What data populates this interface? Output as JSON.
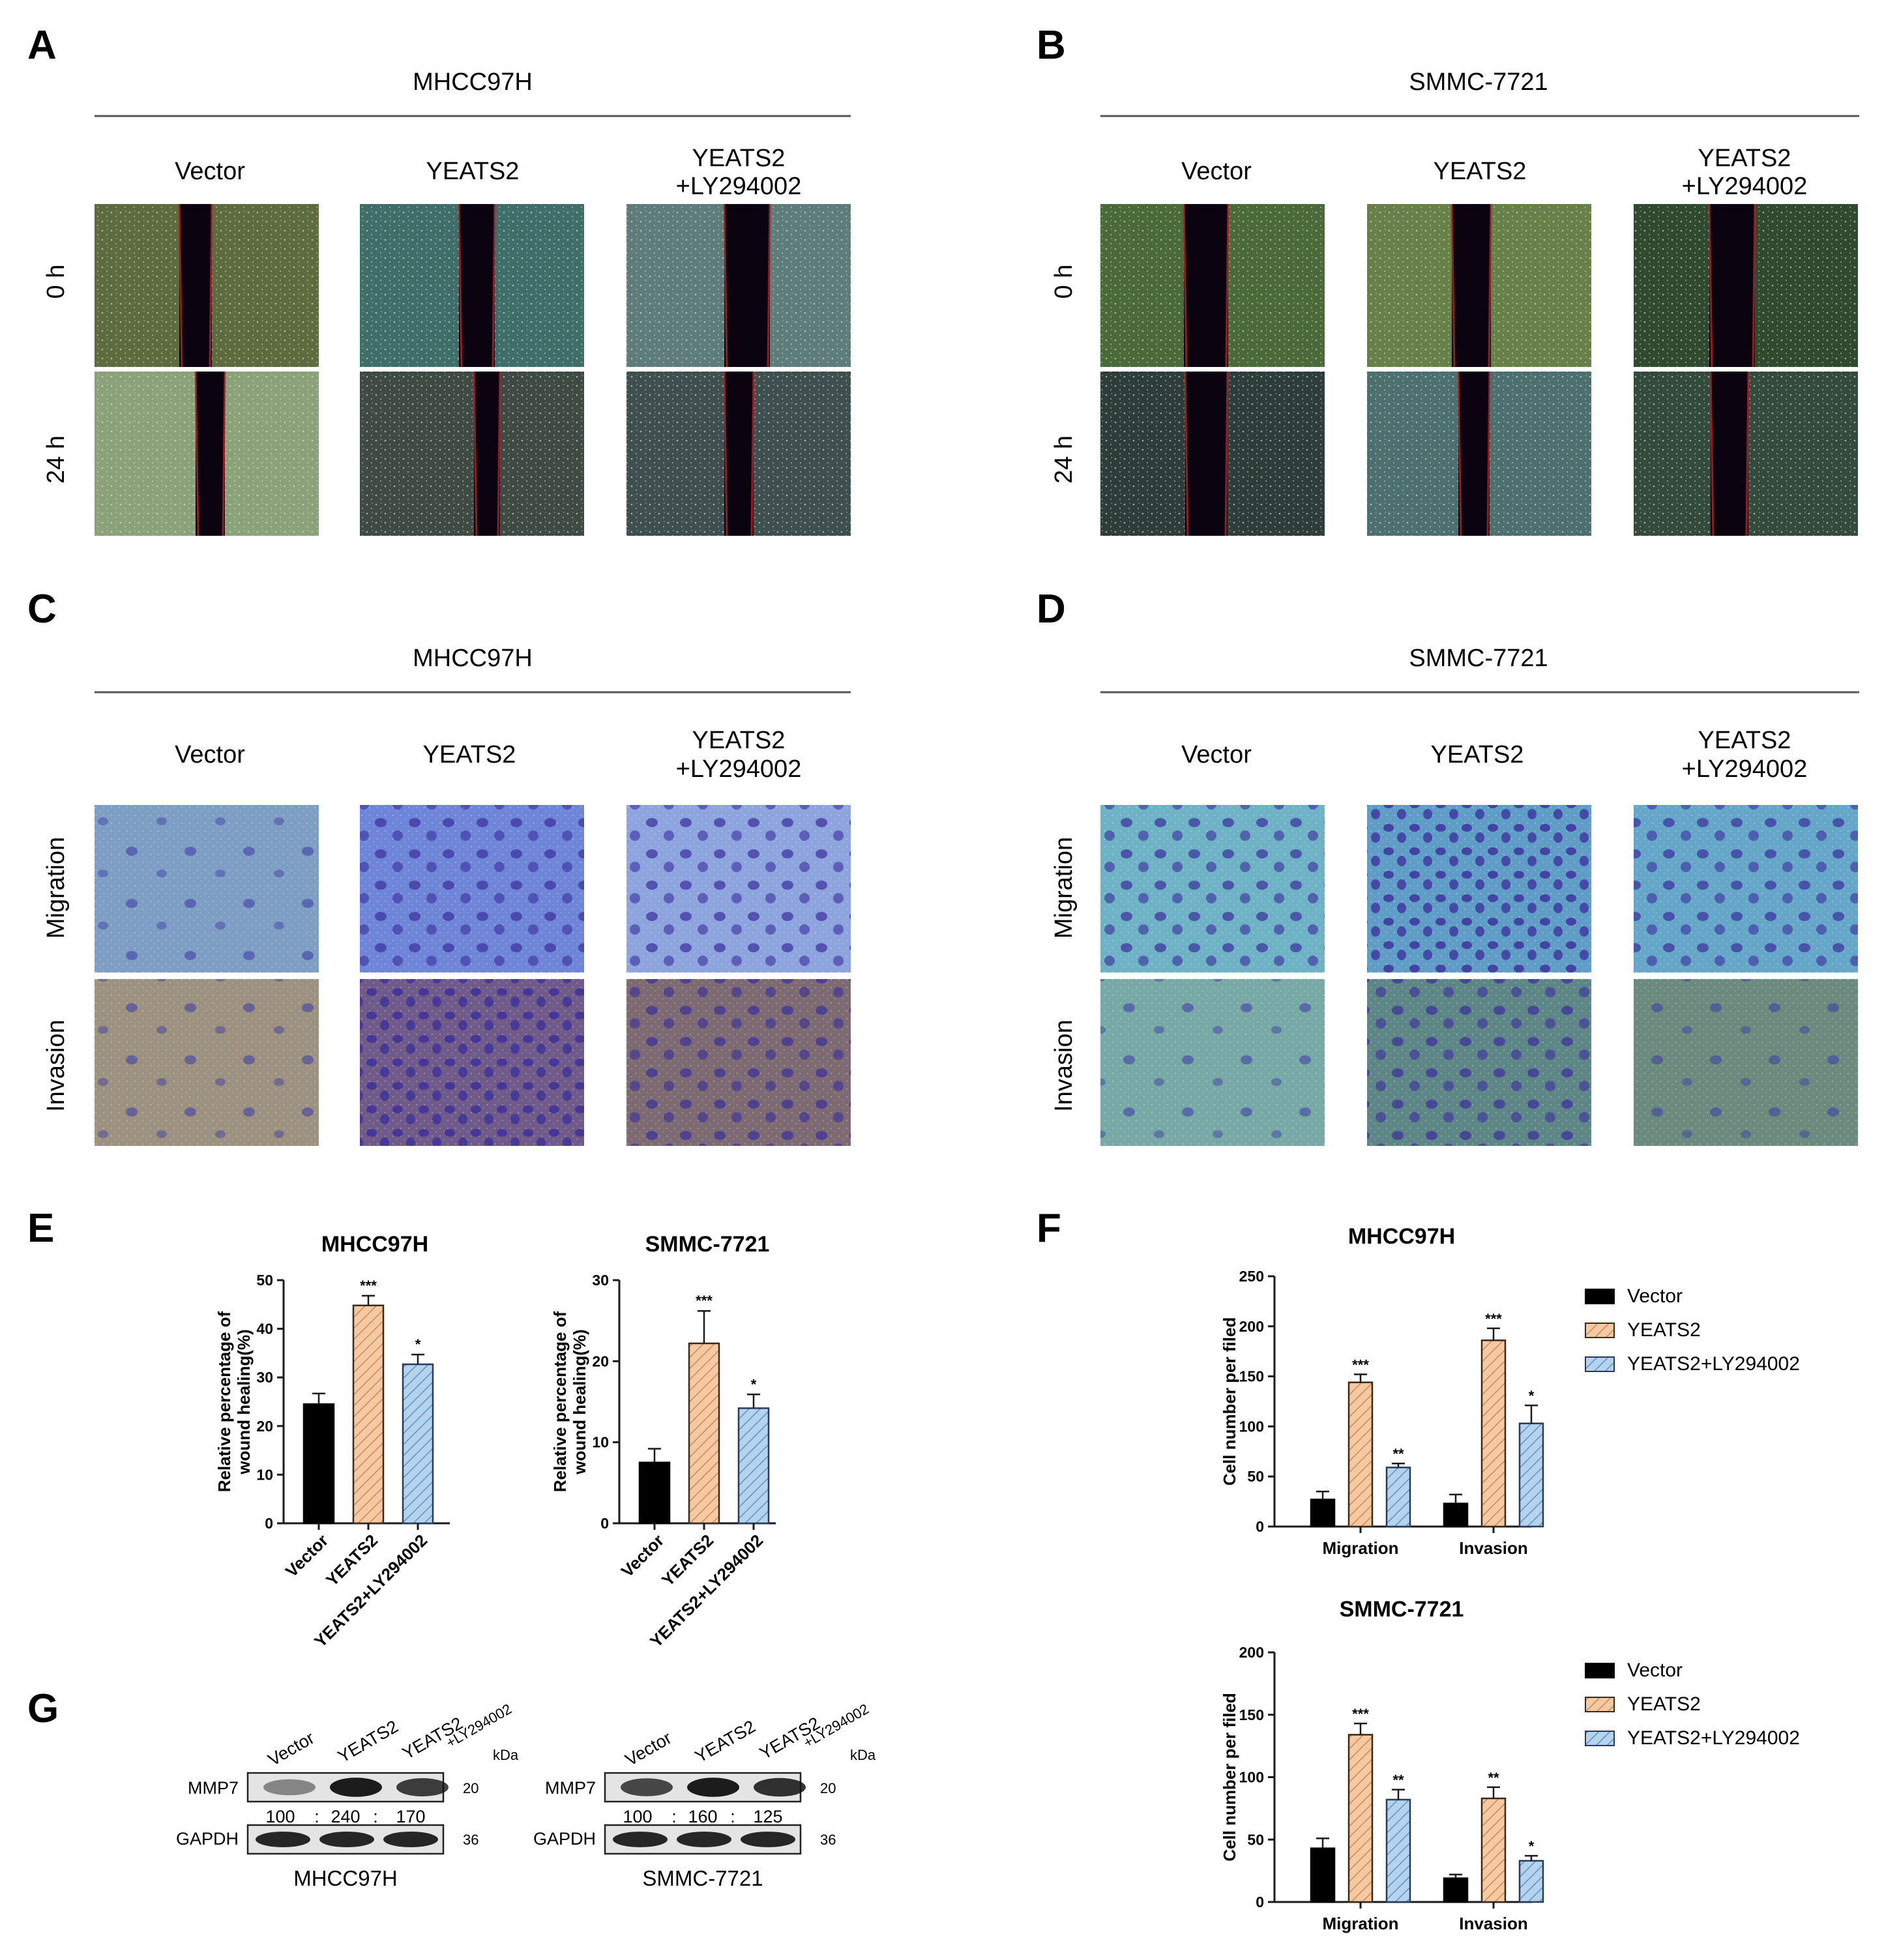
{
  "panels": {
    "A": {
      "letter": "A",
      "cell_line": "MHCC97H"
    },
    "B": {
      "letter": "B",
      "cell_line": "SMMC-7721"
    },
    "C": {
      "letter": "C",
      "cell_line": "MHCC97H"
    },
    "D": {
      "letter": "D",
      "cell_line": "SMMC-7721"
    },
    "E": {
      "letter": "E"
    },
    "F": {
      "letter": "F"
    },
    "G": {
      "letter": "G"
    }
  },
  "groups": {
    "vector": "Vector",
    "yeats2": "YEATS2",
    "combo_line1": "YEATS2",
    "combo_line2": "+LY294002",
    "combo_full": "YEATS2+LY294002"
  },
  "rows": {
    "wound": [
      "0 h",
      "24 h"
    ],
    "transwell": [
      "Migration",
      "Invasion"
    ]
  },
  "colors": {
    "vector": "#000000",
    "yeats2": "#f6c9a3",
    "combo": "#b5d3ec",
    "axis": "#1a1a1a"
  },
  "chart_data": [
    {
      "id": "E-left",
      "type": "bar",
      "title": "MHCC97H",
      "ylabel": "Relative percentage of wound healing(%)",
      "categories": [
        "Vector",
        "YEATS2",
        "YEATS2+LY294002"
      ],
      "values": [
        24.5,
        44.8,
        32.7
      ],
      "errors": [
        2.2,
        2.0,
        2.0
      ],
      "significance": [
        "",
        "***",
        "*"
      ],
      "ylim": [
        0,
        50
      ],
      "yticks": [
        0,
        10,
        20,
        30,
        40,
        50
      ]
    },
    {
      "id": "E-right",
      "type": "bar",
      "title": "SMMC-7721",
      "ylabel": "Relative percentage of wound healing(%)",
      "categories": [
        "Vector",
        "YEATS2",
        "YEATS2+LY294002"
      ],
      "values": [
        7.5,
        22.2,
        14.2
      ],
      "errors": [
        1.7,
        4.0,
        1.7
      ],
      "significance": [
        "",
        "***",
        "*"
      ],
      "ylim": [
        0,
        30
      ],
      "yticks": [
        0,
        10,
        20,
        30
      ]
    },
    {
      "id": "F-top",
      "type": "bar",
      "title": "MHCC97H",
      "ylabel": "Cell number per filed",
      "categories": [
        "Migration",
        "Invasion"
      ],
      "series": [
        {
          "name": "Vector",
          "values": [
            27,
            23
          ],
          "errors": [
            8,
            9
          ],
          "significance": [
            "",
            ""
          ]
        },
        {
          "name": "YEATS2",
          "values": [
            144,
            186
          ],
          "errors": [
            8,
            12
          ],
          "significance": [
            "***",
            "***"
          ]
        },
        {
          "name": "YEATS2+LY294002",
          "values": [
            59,
            103
          ],
          "errors": [
            4,
            18
          ],
          "significance": [
            "**",
            "*"
          ]
        }
      ],
      "ylim": [
        0,
        250
      ],
      "yticks": [
        0,
        50,
        100,
        150,
        200,
        250
      ],
      "legend": "right"
    },
    {
      "id": "F-bottom",
      "type": "bar",
      "title": "SMMC-7721",
      "ylabel": "Cell number per filed",
      "categories": [
        "Migration",
        "Invasion"
      ],
      "series": [
        {
          "name": "Vector",
          "values": [
            43,
            19
          ],
          "errors": [
            8,
            3
          ],
          "significance": [
            "",
            ""
          ]
        },
        {
          "name": "YEATS2",
          "values": [
            134,
            83
          ],
          "errors": [
            9,
            9
          ],
          "significance": [
            "***",
            "**"
          ]
        },
        {
          "name": "YEATS2+LY294002",
          "values": [
            82,
            33
          ],
          "errors": [
            8,
            4
          ],
          "significance": [
            "**",
            "*"
          ]
        }
      ],
      "ylim": [
        0,
        200
      ],
      "yticks": [
        0,
        50,
        100,
        150,
        200
      ],
      "legend": "right"
    }
  ],
  "western": {
    "kda": "kDa",
    "lanes": [
      "Vector",
      "YEATS2",
      "YEATS2",
      "+LY294002"
    ],
    "blots": [
      {
        "cell_line": "MHCC97H",
        "mmp7_ratio": [
          "100",
          ":",
          "240",
          ":",
          "170"
        ],
        "mmp7_intensity": [
          0.45,
          0.95,
          0.8
        ]
      },
      {
        "cell_line": "SMMC-7721",
        "mmp7_ratio": [
          "100",
          ":",
          "160",
          ":",
          "125"
        ],
        "mmp7_intensity": [
          0.75,
          0.95,
          0.85
        ]
      }
    ],
    "proteins": [
      {
        "name": "MMP7",
        "kda": "20"
      },
      {
        "name": "GAPDH",
        "kda": "36"
      }
    ]
  }
}
